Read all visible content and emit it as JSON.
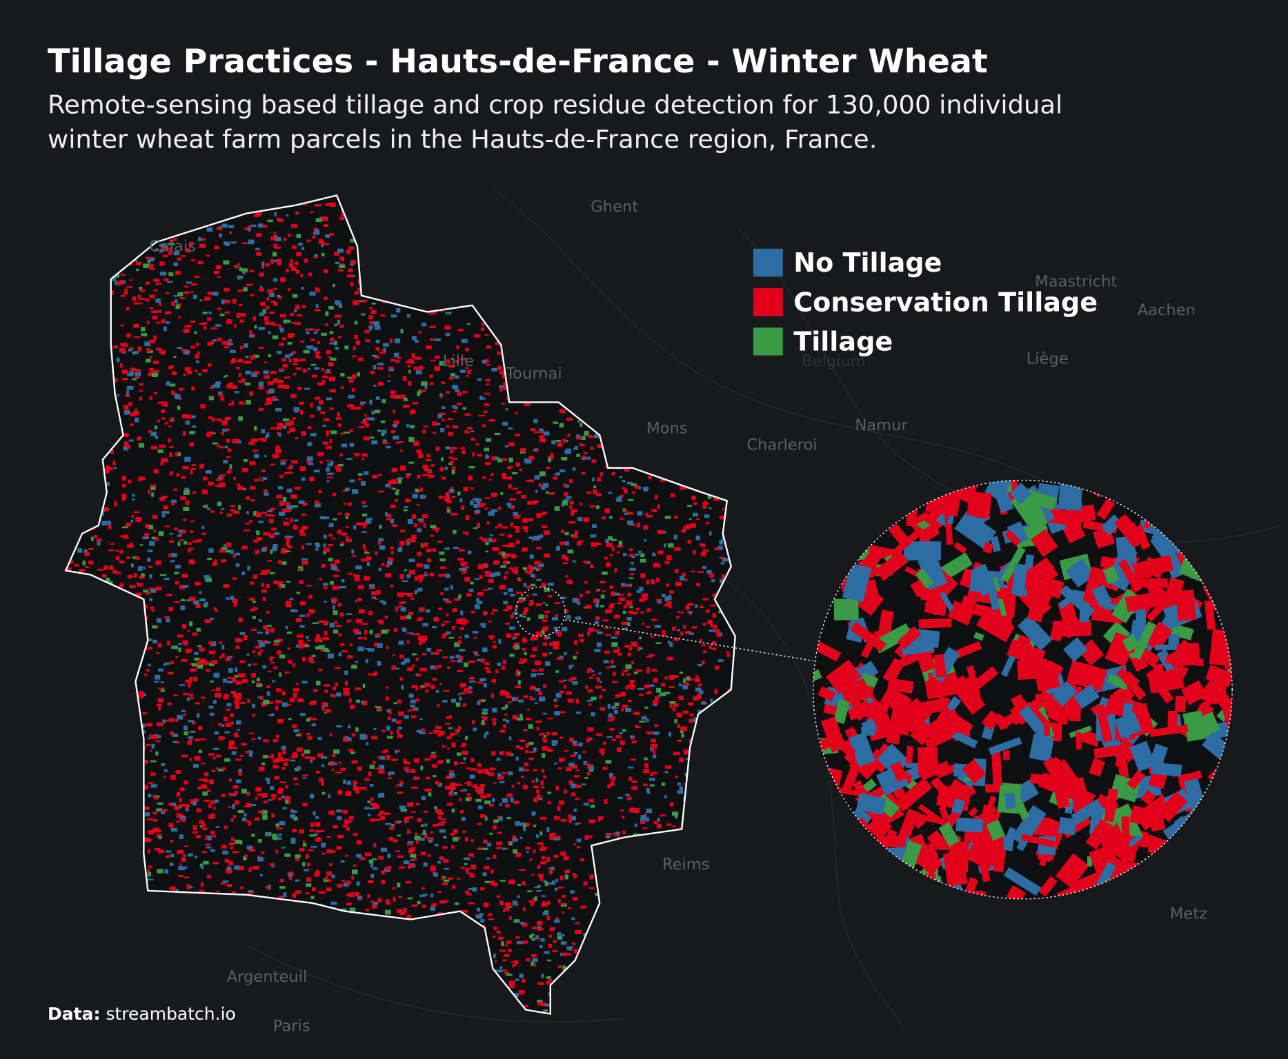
{
  "header": {
    "title": "Tillage Practices - Hauts-de-France - Winter Wheat",
    "subtitle_lines": [
      "Remote-sensing based tillage and crop residue detection for 130,000 individual",
      "winter wheat farm parcels in the Hauts-de-France region, France."
    ]
  },
  "legend": [
    {
      "label": "No Tillage",
      "color": "#2e6da4"
    },
    {
      "label": "Conservation Tillage",
      "color": "#e3001b"
    },
    {
      "label": "Tillage",
      "color": "#3a9a45"
    }
  ],
  "places": [
    {
      "label": "Ghent"
    },
    {
      "label": "Lille"
    },
    {
      "label": "Tournai"
    },
    {
      "label": "Mons"
    },
    {
      "label": "Charleroi"
    },
    {
      "label": "Namur"
    },
    {
      "label": "Maastricht"
    },
    {
      "label": "Aachen"
    },
    {
      "label": "Liège"
    },
    {
      "label": "Belgium"
    },
    {
      "label": "Reims"
    },
    {
      "label": "Metz"
    },
    {
      "label": "Argenteuil"
    },
    {
      "label": "Paris"
    },
    {
      "label": "Calais"
    }
  ],
  "source": {
    "label": "Data:",
    "text": "streambatch.io"
  }
}
